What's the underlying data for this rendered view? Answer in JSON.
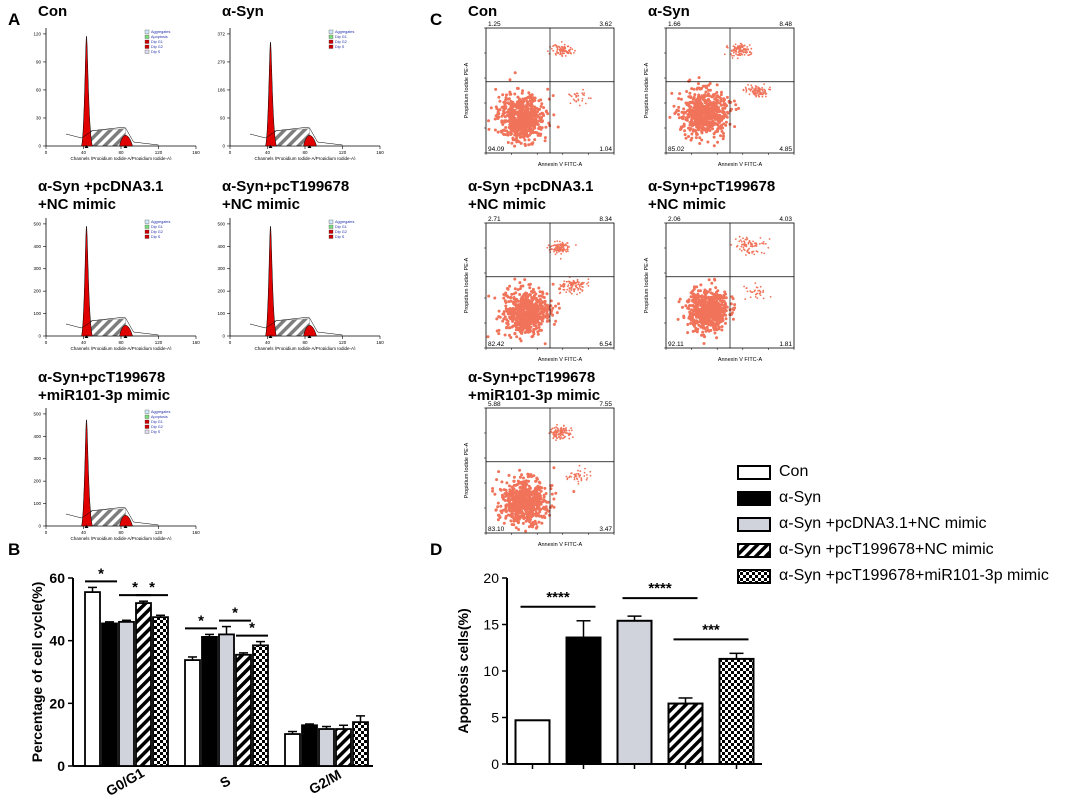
{
  "panel_letters": {
    "A": "A",
    "B": "B",
    "C": "C",
    "D": "D"
  },
  "conditions": [
    "Con",
    "α-Syn",
    "α-Syn +pcDNA3.1+NC mimic",
    "α-Syn +pcT199678+NC mimic",
    "α-Syn +pcT199678+miR101-3p mimic"
  ],
  "panelA": {
    "titles": [
      [
        "Con"
      ],
      [
        "α-Syn"
      ],
      [
        "α-Syn +pcDNA3.1",
        "+NC mimic"
      ],
      [
        "α-Syn+pcT199678",
        "+NC mimic"
      ],
      [
        "α-Syn+pcT199678",
        "+miR101-3p mimic"
      ]
    ],
    "x_axis_label": "Channels (Propidium Iodide-A/Propidium Iodide-A)",
    "x_ticks": [
      "0",
      "40",
      "80",
      "120",
      "160"
    ],
    "legend": [
      "Aggregates",
      "Apoptosis",
      "Dip G1",
      "Dip G2",
      "Dip S"
    ],
    "legend_short": [
      "Aggregates",
      "Dip G1",
      "Dip G2",
      "Dip S"
    ],
    "y_ticks": [
      [
        "0",
        "30",
        "60",
        "90",
        "120"
      ],
      [
        "0",
        "93",
        "186",
        "279",
        "372"
      ],
      [
        "0",
        "100",
        "200",
        "300",
        "400",
        "500"
      ],
      [
        "0",
        "100",
        "200",
        "300",
        "400",
        "500"
      ],
      [
        "0",
        "100",
        "200",
        "300",
        "400",
        "500"
      ]
    ]
  },
  "panelC": {
    "titles": [
      [
        "Con"
      ],
      [
        "α-Syn"
      ],
      [
        "α-Syn +pcDNA3.1",
        "+NC mimic"
      ],
      [
        "α-Syn+pcT199678",
        "+NC mimic"
      ],
      [
        "α-Syn+pcT199678",
        "+miR101-3p mimic"
      ]
    ],
    "x_axis_label": "Annexin V FITC-A",
    "y_axis_label": "Propidium Iodide PE-A",
    "quadrants": [
      {
        "ul": "1.25",
        "ur": "3.62",
        "ll": "94.09",
        "lr": "1.04"
      },
      {
        "ul": "1.66",
        "ur": "8.48",
        "ll": "85.02",
        "lr": "4.85"
      },
      {
        "ul": "2.71",
        "ur": "8.34",
        "ll": "82.42",
        "lr": "6.54"
      },
      {
        "ul": "2.06",
        "ur": "4.03",
        "ll": "92.11",
        "lr": "1.81"
      },
      {
        "ul": "5.88",
        "ur": "7.55",
        "ll": "83.10",
        "lr": "3.47"
      }
    ]
  },
  "legend_entries": [
    {
      "label": "Con",
      "pattern": "white"
    },
    {
      "label": "α-Syn",
      "pattern": "black"
    },
    {
      "label": "α-Syn +pcDNA3.1+NC mimic",
      "pattern": "gray"
    },
    {
      "label": "α-Syn +pcT199678+NC mimic",
      "pattern": "hatch"
    },
    {
      "label": "α-Syn +pcT199678+miR101-3p mimic",
      "pattern": "check"
    }
  ],
  "colors": {
    "gray_fill": "#d0d2dc",
    "histogram_red": "#e00000",
    "dot_red": "#f0735a"
  },
  "chart_data": [
    {
      "type": "bar",
      "id": "panelB",
      "title": "",
      "xlabel": "",
      "ylabel": "Percentage of cell cycle(%)",
      "categories": [
        "G0/G1",
        "S",
        "G2/M"
      ],
      "ylim": [
        0,
        60
      ],
      "yticks": [
        0,
        20,
        40,
        60
      ],
      "series": [
        {
          "name": "Con",
          "values": [
            55.5,
            33.8,
            10.2
          ],
          "errors": [
            1.5,
            1.0,
            0.8
          ]
        },
        {
          "name": "α-Syn",
          "values": [
            45.5,
            41.2,
            13.0
          ],
          "errors": [
            0.5,
            0.8,
            0.4
          ]
        },
        {
          "name": "α-Syn +pcDNA3.1+NC mimic",
          "values": [
            46.0,
            42.0,
            11.8
          ],
          "errors": [
            0.5,
            2.5,
            0.8
          ]
        },
        {
          "name": "α-Syn +pcT199678+NC mimic",
          "values": [
            52.0,
            35.5,
            11.8
          ],
          "errors": [
            0.6,
            0.6,
            1.2
          ]
        },
        {
          "name": "α-Syn +pcT199678+miR101-3p mimic",
          "values": [
            47.5,
            38.5,
            14.0
          ],
          "errors": [
            0.6,
            1.2,
            2.0
          ]
        }
      ],
      "significance": [
        {
          "label": "*",
          "category": 0,
          "from": 0,
          "to": 1
        },
        {
          "label": "*",
          "category": 0,
          "from": 2,
          "to": 3
        },
        {
          "label": "*",
          "category": 0,
          "from": 3,
          "to": 4
        },
        {
          "label": "*",
          "category": 1,
          "from": 0,
          "to": 1
        },
        {
          "label": "*",
          "category": 1,
          "from": 2,
          "to": 3
        },
        {
          "label": "*",
          "category": 1,
          "from": 3,
          "to": 4
        }
      ]
    },
    {
      "type": "bar",
      "id": "panelD",
      "title": "",
      "xlabel": "",
      "ylabel": "Apoptosis cells(%)",
      "categories": [
        "Con",
        "α-Syn",
        "α-Syn +pcDNA3.1+NC mimic",
        "α-Syn +pcT199678+NC mimic",
        "α-Syn +pcT199678+miR101-3p mimic"
      ],
      "values": [
        4.7,
        13.6,
        15.4,
        6.5,
        11.3
      ],
      "errors": [
        0.0,
        1.8,
        0.5,
        0.6,
        0.6
      ],
      "ylim": [
        0,
        20
      ],
      "yticks": [
        0,
        5,
        10,
        15,
        20
      ],
      "significance": [
        {
          "label": "****",
          "from": 0,
          "to": 1
        },
        {
          "label": "****",
          "from": 2,
          "to": 3
        },
        {
          "label": "***",
          "from": 3,
          "to": 4
        }
      ]
    }
  ]
}
